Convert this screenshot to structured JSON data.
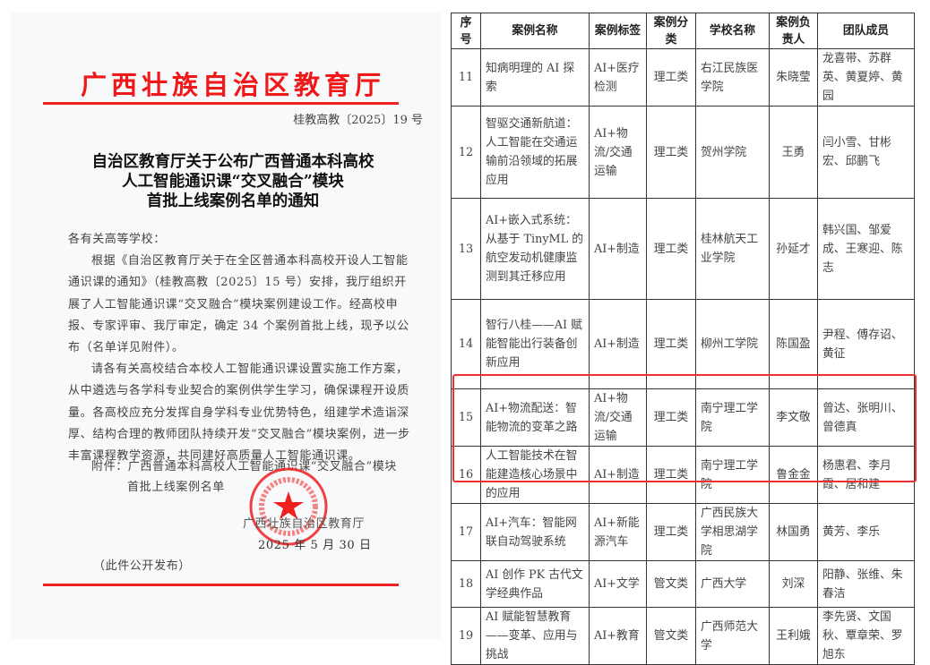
{
  "notice": {
    "organization": "广西壮族自治区教育厅",
    "doc_number": "桂教高教〔2025〕19 号",
    "heading": [
      "自治区教育厅关于公布广西普通本科高校",
      "人工智能通识课“交叉融合”模块",
      "首批上线案例名单的通知"
    ],
    "salutation": "各有关高等学校：",
    "paragraph1": "根据《自治区教育厅关于在全区普通本科高校开设人工智能通识课的通知》（桂教高教〔2025〕15 号）安排，我厅组织开展了人工智能通识课“交叉融合”模块案例建设工作。经高校申报、专家评审、我厅审定，确定 34 个案例首批上线，现予以公布（名单详见附件）。",
    "paragraph2": "请各有关高校结合本校人工智能通识课设置实施工作方案，从中遴选与各学科专业契合的案例供学生学习，确保课程开设质量。各高校应充分发挥自身学科专业优势特色，组建学术造诣深厚、结构合理的教师团队持续开发“交叉融合”模块案例，进一步丰富课程教学资源，共同建好高质量人工智能通识课。",
    "attachment_line1": "附件：广西普通本科高校人工智能通识课“交叉融合”模块",
    "attachment_line2": "首批上线案例名单",
    "signature": "广西壮族自治区教育厅",
    "date": "2025 年 5 月 30 日",
    "publication_note": "（此件公开发布）",
    "stamp_text": "广西壮族自治区教育厅 GVANGJSIH BOUXCUENGH SWCIGIH YUZDINGH",
    "accent_color": "#f01818"
  },
  "table": {
    "headers": [
      "序号",
      "案例名称",
      "案例标签",
      "案例分类",
      "学校名称",
      "案例负责人",
      "团队成员"
    ],
    "rows": [
      {
        "no": "11",
        "name": "知病明理的 AI 探索",
        "tag": "AI+医疗检测",
        "category": "理工类",
        "school": "右江民族医学院",
        "lead": "朱晓莹",
        "members": "龙喜带、苏群英、黄夏婷、黄园"
      },
      {
        "no": "12",
        "name": "智驱交通新航道：人工智能在交通运输前沿领域的拓展应用",
        "tag": "AI+物流/交通运输",
        "category": "理工类",
        "school": "贺州学院",
        "lead": "王勇",
        "members": "闫小雪、甘彬宏、邱鹏飞"
      },
      {
        "no": "13",
        "name": "AI+嵌入式系统：从基于 TinyML 的航空发动机健康监测到其迁移应用",
        "tag": "AI+制造",
        "category": "理工类",
        "school": "桂林航天工业学院",
        "lead": "孙延才",
        "members": "韩兴国、邹爱成、王寒迎、陈志"
      },
      {
        "no": "14",
        "name": "智行八桂——AI 赋能智能出行装备创新应用",
        "tag": "AI+制造",
        "category": "理工类",
        "school": "柳州工学院",
        "lead": "陈国盈",
        "members": "尹程、傅存诏、黄征"
      },
      {
        "no": "15",
        "name": "AI+物流配送：智能物流的变革之路",
        "tag": "AI+物流/交通运输",
        "category": "理工类",
        "school": "南宁理工学院",
        "lead": "李文敬",
        "members": "曾达、张明川、曾德真"
      },
      {
        "no": "16",
        "name": "人工智能技术在智能建造核心场景中的应用",
        "tag": "AI+制造",
        "category": "理工类",
        "school": "南宁理工学院",
        "lead": "鲁金金",
        "members": "杨惠君、李月霞、居和建"
      },
      {
        "no": "17",
        "name": "AI+汽车：智能网联自动驾驶系统",
        "tag": "AI+新能源汽车",
        "category": "理工类",
        "school": "广西民族大学相思湖学院",
        "lead": "林国勇",
        "members": "黄芳、李乐"
      },
      {
        "no": "18",
        "name": "AI 创作 PK 古代文学经典作品",
        "tag": "AI+文学",
        "category": "管文类",
        "school": "广西大学",
        "lead": "刘深",
        "members": "阳静、张维、朱春洁"
      },
      {
        "no": "19",
        "name": "AI 赋能智慧教育——变革、应用与挑战",
        "tag": "AI+教育",
        "category": "管文类",
        "school": "广西师范大学",
        "lead": "王利娥",
        "members": "李先贤、文国秋、覃章荣、罗旭东"
      }
    ],
    "highlighted_rows": [
      "15",
      "16"
    ],
    "highlight_color": "#f03030"
  }
}
